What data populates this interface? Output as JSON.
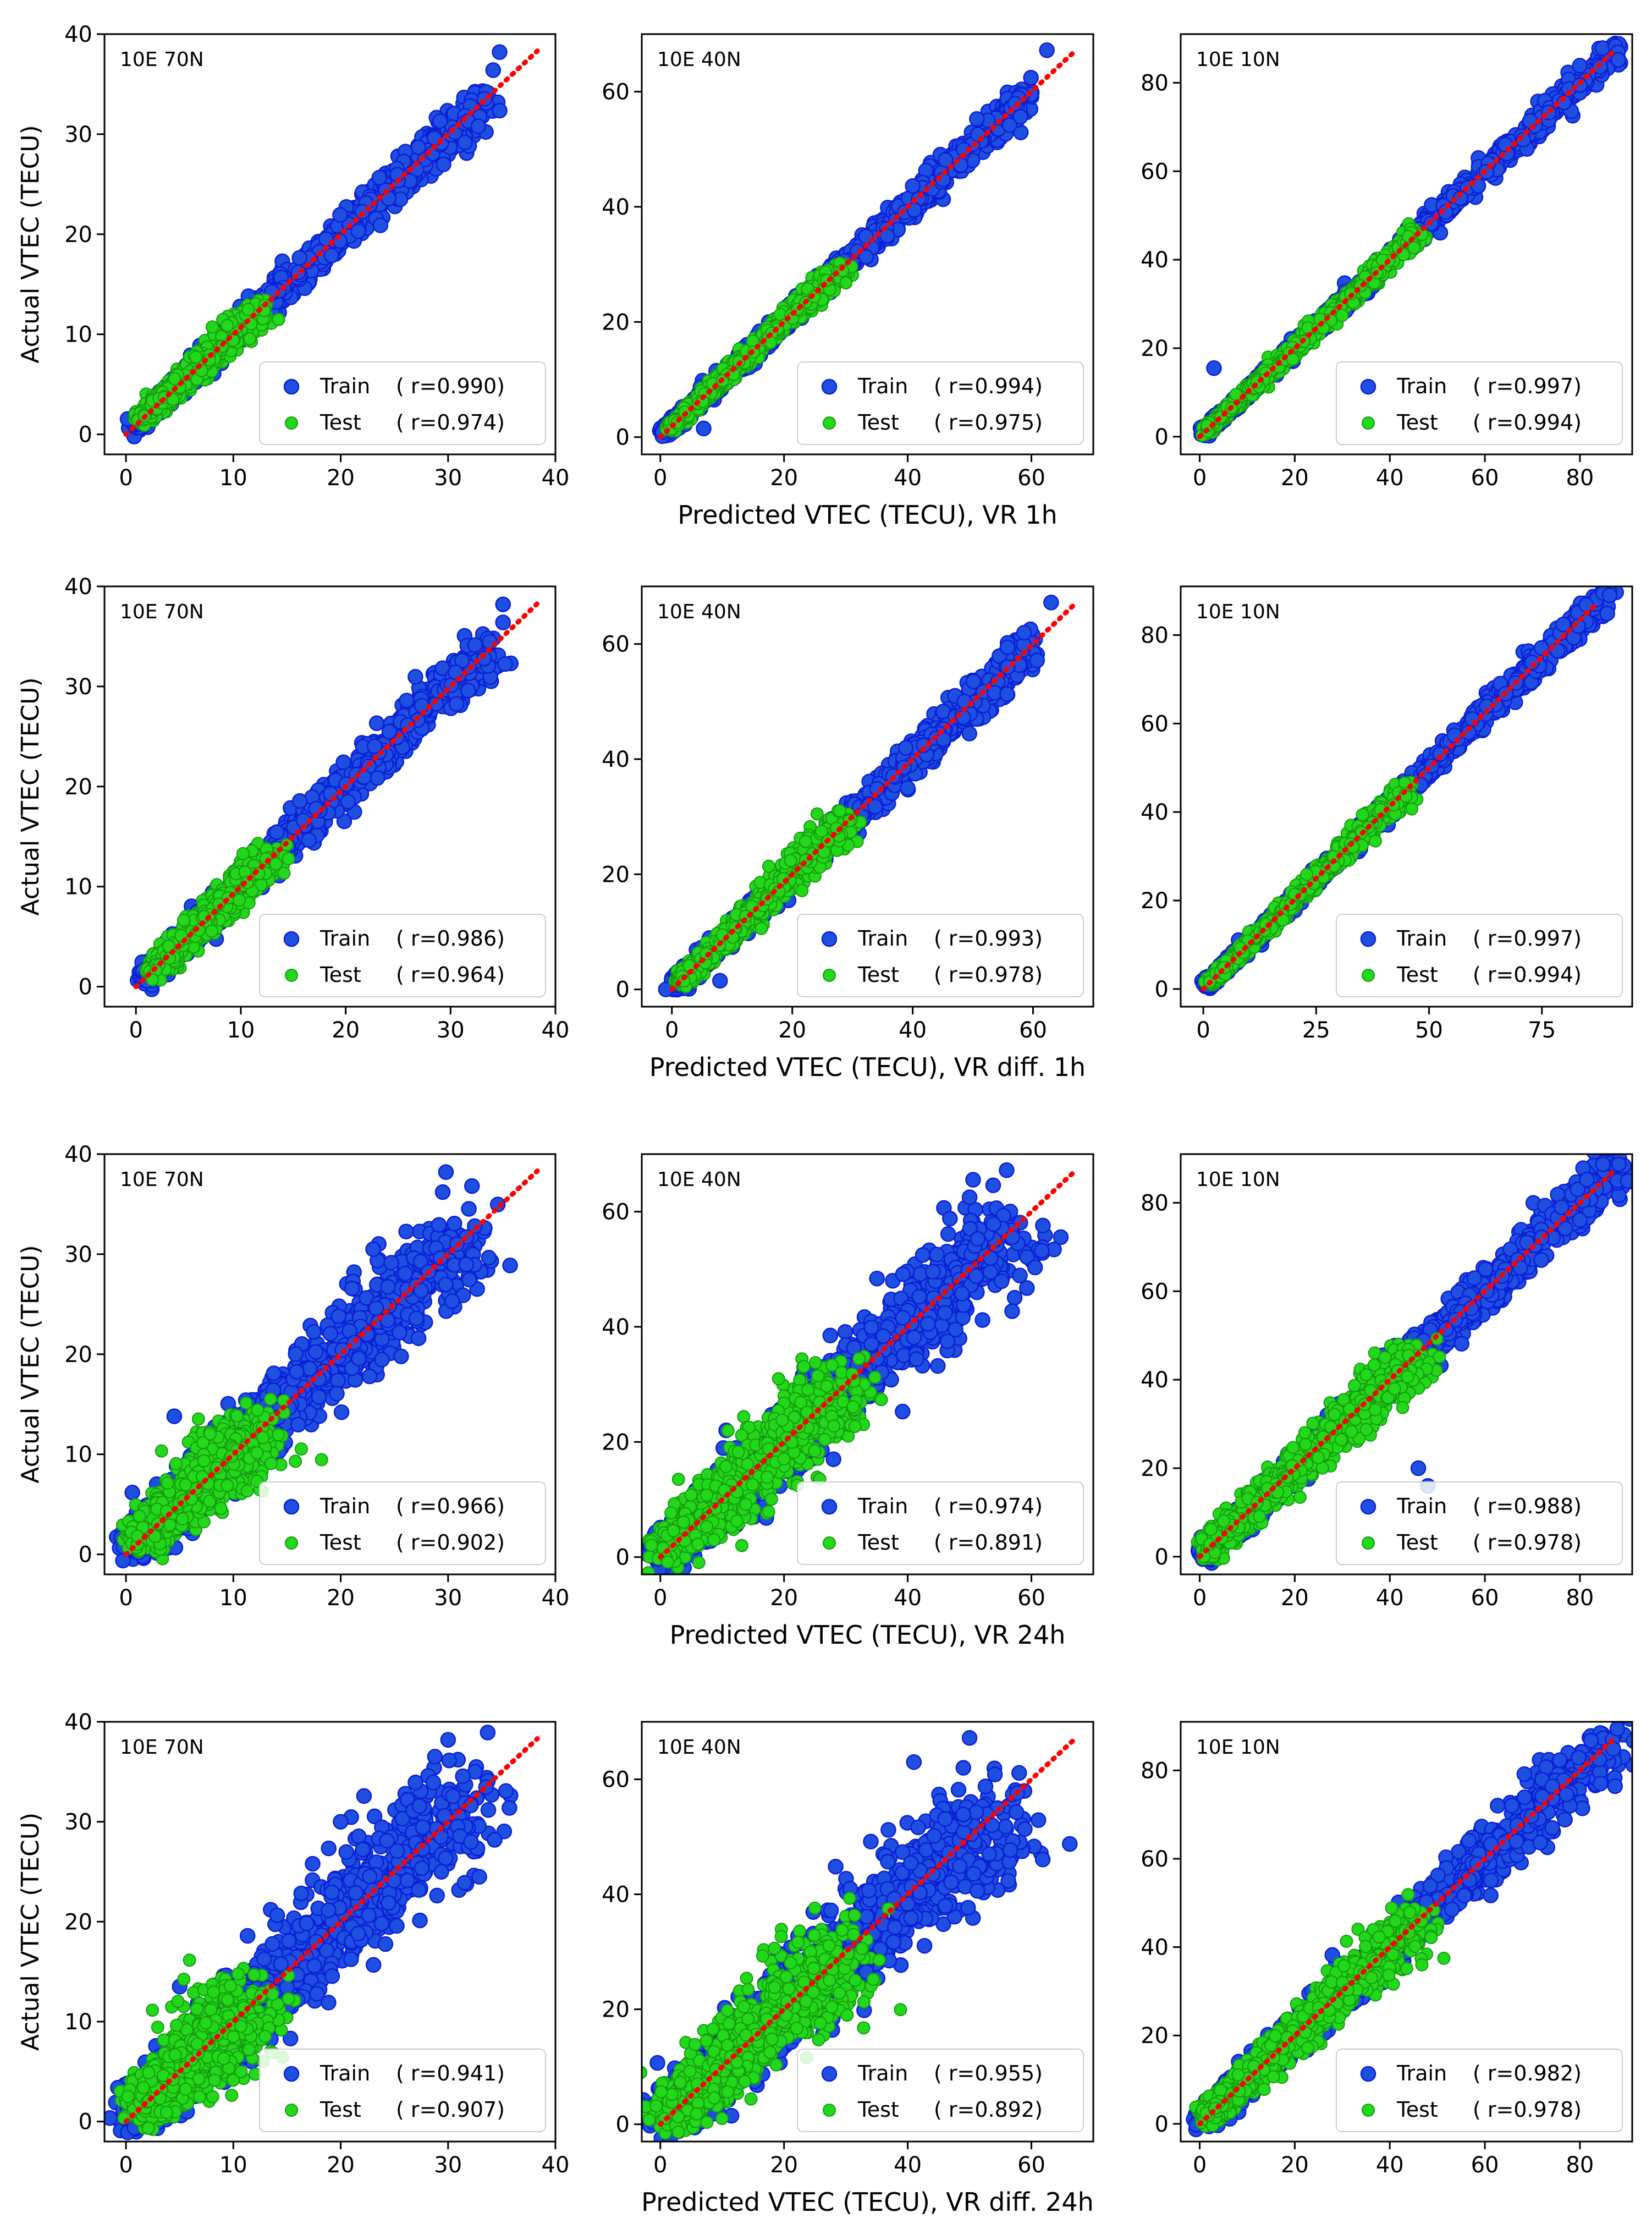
{
  "figure": {
    "ylabel": "Actual VTEC (TECU)",
    "row_xlabels": [
      "Predicted VTEC (TECU), VR 1h",
      "Predicted VTEC (TECU), VR diff. 1h",
      "Predicted VTEC (TECU), VR 24h",
      "Predicted VTEC (TECU), VR diff. 24h"
    ],
    "colors": {
      "train": "#1f4fe0",
      "train_edge": "#0a1fd6",
      "test": "#22d81a",
      "test_edge": "#169a12",
      "diagonal": "#ff0000"
    }
  },
  "chart_data": [
    {
      "type": "scatter",
      "row": 0,
      "col": 0,
      "annotation": "10E 70N",
      "xlim": [
        -2,
        40
      ],
      "ylim": [
        -2,
        40
      ],
      "xticks": [
        0,
        10,
        20,
        30,
        40
      ],
      "yticks": [
        0,
        10,
        20,
        30,
        40
      ],
      "xlabel": "",
      "ylabel": "Actual VTEC (TECU)",
      "train_max": 33.5,
      "train_spread": 0.9,
      "test_max": 12.5,
      "test_spread": 0.8,
      "outliers": [
        [
          34.8,
          38.2
        ],
        [
          34.2,
          36.4
        ]
      ],
      "series": [
        {
          "name": "Train",
          "label": "Train",
          "r_text": "( r=0.990)"
        },
        {
          "name": "Test",
          "label": "Test",
          "r_text": "( r=0.974)"
        }
      ]
    },
    {
      "type": "scatter",
      "row": 0,
      "col": 1,
      "annotation": "10E 40N",
      "xlim": [
        -3,
        70
      ],
      "ylim": [
        -3,
        70
      ],
      "xticks": [
        0,
        20,
        40,
        60
      ],
      "yticks": [
        0,
        20,
        40,
        60
      ],
      "xlabel": "Predicted VTEC (TECU), VR 1h",
      "ylabel": "",
      "train_max": 60,
      "train_spread": 1.2,
      "test_max": 30,
      "test_spread": 1.0,
      "outliers": [
        [
          62.5,
          67.2
        ],
        [
          7,
          1.5
        ]
      ],
      "series": [
        {
          "name": "Train",
          "label": "Train",
          "r_text": "( r=0.994)"
        },
        {
          "name": "Test",
          "label": "Test",
          "r_text": "( r=0.975)"
        }
      ]
    },
    {
      "type": "scatter",
      "row": 0,
      "col": 2,
      "annotation": "10E 10N",
      "xlim": [
        -4,
        91
      ],
      "ylim": [
        -4,
        91
      ],
      "xticks": [
        0,
        20,
        40,
        60,
        80
      ],
      "yticks": [
        0,
        20,
        40,
        60,
        80
      ],
      "xlabel": "",
      "ylabel": "",
      "train_max": 88,
      "train_spread": 1.3,
      "test_max": 46,
      "test_spread": 1.2,
      "outliers": [
        [
          3,
          15.5
        ]
      ],
      "series": [
        {
          "name": "Train",
          "label": "Train",
          "r_text": "( r=0.997)"
        },
        {
          "name": "Test",
          "label": "Test",
          "r_text": "( r=0.994)"
        }
      ]
    },
    {
      "type": "scatter",
      "row": 1,
      "col": 0,
      "annotation": "10E 70N",
      "xlim": [
        -3,
        40
      ],
      "ylim": [
        -2,
        40
      ],
      "xticks": [
        0,
        10,
        20,
        30,
        40
      ],
      "yticks": [
        0,
        10,
        20,
        30,
        40
      ],
      "xlabel": "",
      "ylabel": "Actual VTEC (TECU)",
      "train_max": 33.5,
      "train_spread": 1.1,
      "test_max": 13,
      "test_spread": 1.0,
      "outliers": [
        [
          35,
          38.2
        ],
        [
          35,
          36.4
        ]
      ],
      "series": [
        {
          "name": "Train",
          "label": "Train",
          "r_text": "( r=0.986)"
        },
        {
          "name": "Test",
          "label": "Test",
          "r_text": "( r=0.964)"
        }
      ]
    },
    {
      "type": "scatter",
      "row": 1,
      "col": 1,
      "annotation": "10E 40N",
      "xlim": [
        -5,
        70
      ],
      "ylim": [
        -3,
        70
      ],
      "xticks": [
        0,
        20,
        40,
        60
      ],
      "yticks": [
        0,
        20,
        40,
        60
      ],
      "xlabel": "Predicted VTEC (TECU), VR diff. 1h",
      "ylabel": "",
      "train_max": 60,
      "train_spread": 1.6,
      "test_max": 29,
      "test_spread": 1.5,
      "outliers": [
        [
          63,
          67.2
        ],
        [
          -1,
          0
        ],
        [
          8,
          1.5
        ]
      ],
      "series": [
        {
          "name": "Train",
          "label": "Train",
          "r_text": "( r=0.993)"
        },
        {
          "name": "Test",
          "label": "Test",
          "r_text": "( r=0.978)"
        }
      ]
    },
    {
      "type": "scatter",
      "row": 1,
      "col": 2,
      "annotation": "10E 10N",
      "xlim": [
        -5,
        95
      ],
      "ylim": [
        -4,
        91
      ],
      "xticks": [
        0,
        25,
        50,
        75
      ],
      "yticks": [
        0,
        20,
        40,
        60,
        80
      ],
      "xlabel": "",
      "ylabel": "",
      "train_max": 89,
      "train_spread": 1.4,
      "test_max": 46,
      "test_spread": 1.3,
      "outliers": [
        [
          90,
          89
        ]
      ],
      "series": [
        {
          "name": "Train",
          "label": "Train",
          "r_text": "( r=0.997)"
        },
        {
          "name": "Test",
          "label": "Test",
          "r_text": "( r=0.994)"
        }
      ]
    },
    {
      "type": "scatter",
      "row": 2,
      "col": 0,
      "annotation": "10E 70N",
      "xlim": [
        -2,
        40
      ],
      "ylim": [
        -2,
        40
      ],
      "xticks": [
        0,
        10,
        20,
        30,
        40
      ],
      "yticks": [
        0,
        10,
        20,
        30,
        40
      ],
      "xlabel": "",
      "ylabel": "Actual VTEC (TECU)",
      "train_max": 32,
      "train_spread": 2.2,
      "test_max": 12.5,
      "test_spread": 2.0,
      "outliers": [
        [
          29.8,
          38.2
        ],
        [
          29.5,
          36.2
        ],
        [
          4.5,
          13.8
        ]
      ],
      "series": [
        {
          "name": "Train",
          "label": "Train",
          "r_text": "( r=0.966)"
        },
        {
          "name": "Test",
          "label": "Test",
          "r_text": "( r=0.902)"
        }
      ]
    },
    {
      "type": "scatter",
      "row": 2,
      "col": 1,
      "annotation": "10E 40N",
      "xlim": [
        -3,
        70
      ],
      "ylim": [
        -3,
        70
      ],
      "xticks": [
        0,
        20,
        40,
        60
      ],
      "yticks": [
        0,
        20,
        40,
        60
      ],
      "xlabel": "Predicted VTEC (TECU), VR 24h",
      "ylabel": "",
      "train_max": 57,
      "train_spread": 4.0,
      "test_max": 30,
      "test_spread": 4.0,
      "outliers": [
        [
          56,
          67.2
        ],
        [
          50,
          62.5
        ],
        [
          28,
          17
        ]
      ],
      "series": [
        {
          "name": "Train",
          "label": "Train",
          "r_text": "( r=0.974)"
        },
        {
          "name": "Test",
          "label": "Test",
          "r_text": "( r=0.891)"
        }
      ]
    },
    {
      "type": "scatter",
      "row": 2,
      "col": 2,
      "annotation": "10E 10N",
      "xlim": [
        -4,
        91
      ],
      "ylim": [
        -4,
        91
      ],
      "xticks": [
        0,
        20,
        40,
        60,
        80
      ],
      "yticks": [
        0,
        20,
        40,
        60,
        80
      ],
      "xlabel": "",
      "ylabel": "",
      "train_max": 88,
      "train_spread": 2.5,
      "test_max": 46,
      "test_spread": 3.0,
      "outliers": [
        [
          46,
          20
        ],
        [
          48,
          16
        ]
      ],
      "series": [
        {
          "name": "Train",
          "label": "Train",
          "r_text": "( r=0.988)"
        },
        {
          "name": "Test",
          "label": "Test",
          "r_text": "( r=0.978)"
        }
      ]
    },
    {
      "type": "scatter",
      "row": 3,
      "col": 0,
      "annotation": "10E 70N",
      "xlim": [
        -2,
        40
      ],
      "ylim": [
        -2,
        40
      ],
      "xticks": [
        0,
        10,
        20,
        30,
        40
      ],
      "yticks": [
        0,
        10,
        20,
        30,
        40
      ],
      "xlabel": "",
      "ylabel": "Actual VTEC (TECU)",
      "train_max": 32,
      "train_spread": 2.8,
      "test_max": 11,
      "test_spread": 2.4,
      "outliers": [
        [
          30,
          38.2
        ],
        [
          20,
          30
        ],
        [
          5,
          13.5
        ]
      ],
      "series": [
        {
          "name": "Train",
          "label": "Train",
          "r_text": "( r=0.941)"
        },
        {
          "name": "Test",
          "label": "Test",
          "r_text": "( r=0.907)"
        }
      ]
    },
    {
      "type": "scatter",
      "row": 3,
      "col": 1,
      "annotation": "10E 40N",
      "xlim": [
        -3,
        70
      ],
      "ylim": [
        -3,
        70
      ],
      "xticks": [
        0,
        20,
        40,
        60
      ],
      "yticks": [
        0,
        20,
        40,
        60
      ],
      "xlabel": "Predicted VTEC (TECU), VR diff. 24h",
      "ylabel": "",
      "train_max": 55,
      "train_spread": 4.8,
      "test_max": 30,
      "test_spread": 4.5,
      "outliers": [
        [
          50,
          67.2
        ],
        [
          41,
          63
        ],
        [
          49,
          62
        ]
      ],
      "series": [
        {
          "name": "Train",
          "label": "Train",
          "r_text": "( r=0.955)"
        },
        {
          "name": "Test",
          "label": "Test",
          "r_text": "( r=0.892)"
        }
      ]
    },
    {
      "type": "scatter",
      "row": 3,
      "col": 2,
      "annotation": "10E 10N",
      "xlim": [
        -4,
        91
      ],
      "ylim": [
        -4,
        91
      ],
      "xticks": [
        0,
        20,
        40,
        60,
        80
      ],
      "yticks": [
        0,
        20,
        40,
        60,
        80
      ],
      "xlabel": "",
      "ylabel": "",
      "train_max": 88,
      "train_spread": 3.2,
      "test_max": 46,
      "test_spread": 3.2,
      "outliers": [],
      "series": [
        {
          "name": "Train",
          "label": "Train",
          "r_text": "( r=0.982)"
        },
        {
          "name": "Test",
          "label": "Test",
          "r_text": "( r=0.978)"
        }
      ]
    }
  ]
}
